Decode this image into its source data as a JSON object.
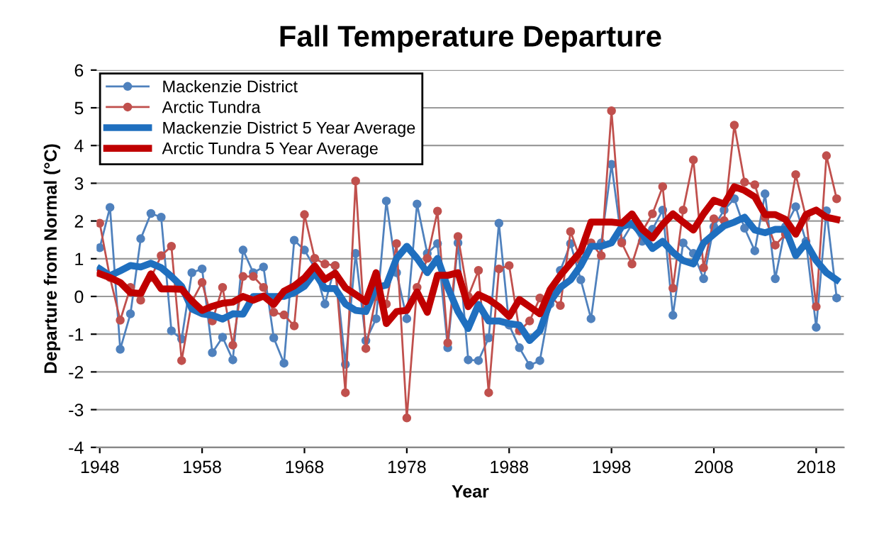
{
  "chart_data": {
    "type": "line",
    "title": "Fall Temperature Departure",
    "xlabel": "Year",
    "ylabel": "Departure from Normal (°C)",
    "x": [
      1948,
      1949,
      1950,
      1951,
      1952,
      1953,
      1954,
      1955,
      1956,
      1957,
      1958,
      1959,
      1960,
      1961,
      1962,
      1963,
      1964,
      1965,
      1966,
      1967,
      1968,
      1969,
      1970,
      1971,
      1972,
      1973,
      1974,
      1975,
      1976,
      1977,
      1978,
      1979,
      1980,
      1981,
      1982,
      1983,
      1984,
      1985,
      1986,
      1987,
      1988,
      1989,
      1990,
      1991,
      1992,
      1993,
      1994,
      1995,
      1996,
      1997,
      1998,
      1999,
      2000,
      2001,
      2002,
      2003,
      2004,
      2005,
      2006,
      2007,
      2008,
      2009,
      2010,
      2011,
      2012,
      2013,
      2014,
      2015,
      2016,
      2017,
      2018,
      2019,
      2020
    ],
    "series": [
      {
        "name": "Mackenzie District",
        "color": "#4f81bd",
        "marker": "circle",
        "values": [
          1.29,
          2.36,
          -1.4,
          -0.46,
          1.53,
          2.2,
          2.1,
          -0.91,
          -1.13,
          0.63,
          0.73,
          -1.49,
          -1.08,
          -1.68,
          1.23,
          0.63,
          0.78,
          -1.1,
          -1.77,
          1.49,
          1.23,
          0.76,
          -0.2,
          0.82,
          -1.8,
          1.14,
          -1.17,
          -0.59,
          2.53,
          0.63,
          -0.59,
          2.45,
          1.14,
          1.4,
          -1.36,
          1.42,
          -1.68,
          -1.7,
          -1.1,
          1.94,
          -0.76,
          -1.36,
          -1.83,
          -1.7,
          -0.2,
          0.69,
          1.4,
          0.44,
          -0.59,
          1.42,
          3.5,
          1.46,
          1.91,
          1.46,
          1.78,
          2.29,
          -0.5,
          1.42,
          1.14,
          0.47,
          1.85,
          2.29,
          2.59,
          1.81,
          1.21,
          2.72,
          0.47,
          1.85,
          2.38,
          1.46,
          -0.82,
          2.27,
          -0.04
        ]
      },
      {
        "name": "Arctic Tundra",
        "color": "#c0504d",
        "marker": "circle",
        "values": [
          1.94,
          0.5,
          -0.63,
          0.24,
          -0.1,
          0.5,
          1.08,
          1.33,
          -1.7,
          -0.14,
          0.37,
          -0.65,
          0.24,
          -1.29,
          0.53,
          0.53,
          0.24,
          -0.42,
          -0.49,
          -0.78,
          2.17,
          1.01,
          0.86,
          0.82,
          -2.55,
          3.06,
          -1.38,
          0,
          -0.2,
          1.4,
          -3.22,
          0.24,
          1.01,
          2.26,
          -1.23,
          1.59,
          0,
          0.69,
          -2.55,
          0.73,
          0.82,
          -0.91,
          -0.65,
          -0.04,
          0,
          -0.24,
          1.72,
          0.95,
          1.42,
          1.08,
          4.92,
          1.42,
          0.86,
          1.72,
          2.19,
          2.91,
          0.22,
          2.29,
          3.62,
          0.76,
          2.06,
          2.01,
          4.54,
          3.03,
          2.96,
          2.1,
          1.36,
          1.65,
          3.23,
          2.1,
          -0.27,
          3.73,
          2.59
        ]
      },
      {
        "name": "Mackenzie District 5 Year Average",
        "color": "#1f6fbf",
        "marker": "none",
        "values": [
          0.73,
          0.55,
          0.68,
          0.82,
          0.78,
          0.88,
          0.76,
          0.53,
          0.27,
          -0.33,
          -0.46,
          -0.5,
          -0.6,
          -0.46,
          -0.47,
          0,
          0,
          0,
          0,
          0.1,
          0.27,
          0.63,
          0.21,
          0.21,
          -0.2,
          -0.37,
          -0.4,
          0.24,
          0.3,
          1.01,
          1.33,
          1.01,
          0.63,
          1.01,
          0.24,
          -0.4,
          -0.85,
          -0.21,
          -0.65,
          -0.65,
          -0.72,
          -0.76,
          -1.17,
          -0.91,
          -0.14,
          0.24,
          0.44,
          0.82,
          1.33,
          1.33,
          1.42,
          1.85,
          1.94,
          1.65,
          1.27,
          1.46,
          1.17,
          0.95,
          0.86,
          1.42,
          1.65,
          1.87,
          1.97,
          2.1,
          1.76,
          1.69,
          1.78,
          1.78,
          1.08,
          1.42,
          0.95,
          0.63,
          0.44
        ]
      },
      {
        "name": "Arctic Tundra 5 Year Average",
        "color": "#c00000",
        "marker": "none",
        "values": [
          0.6,
          0.5,
          0.37,
          0.1,
          0.08,
          0.6,
          0.2,
          0.2,
          0.19,
          -0.12,
          -0.37,
          -0.26,
          -0.18,
          -0.15,
          0,
          -0.1,
          0.01,
          -0.21,
          0.14,
          0.28,
          0.49,
          0.81,
          0.45,
          0.62,
          0.23,
          0.05,
          -0.14,
          0.63,
          -0.72,
          -0.4,
          -0.37,
          0.12,
          -0.42,
          0.56,
          0.56,
          0.63,
          -0.27,
          0.05,
          -0.08,
          -0.27,
          -0.53,
          -0.08,
          -0.27,
          -0.46,
          0.18,
          0.56,
          0.88,
          1.2,
          1.97,
          1.97,
          1.97,
          1.94,
          2.19,
          1.78,
          1.55,
          1.91,
          2.19,
          1.97,
          1.76,
          2.19,
          2.55,
          2.45,
          2.91,
          2.81,
          2.64,
          2.17,
          2.17,
          2.04,
          1.65,
          2.17,
          2.29,
          2.1,
          2.04
        ]
      }
    ],
    "xlim": [
      1947.7,
      2020.7
    ],
    "xticks": [
      1948,
      1958,
      1968,
      1978,
      1988,
      1998,
      2008,
      2018
    ],
    "ylim": [
      -4,
      6
    ],
    "yticks": [
      -4,
      -3,
      -2,
      -1,
      0,
      1,
      2,
      3,
      4,
      5,
      6
    ],
    "grid": "y",
    "legend": "top left"
  }
}
